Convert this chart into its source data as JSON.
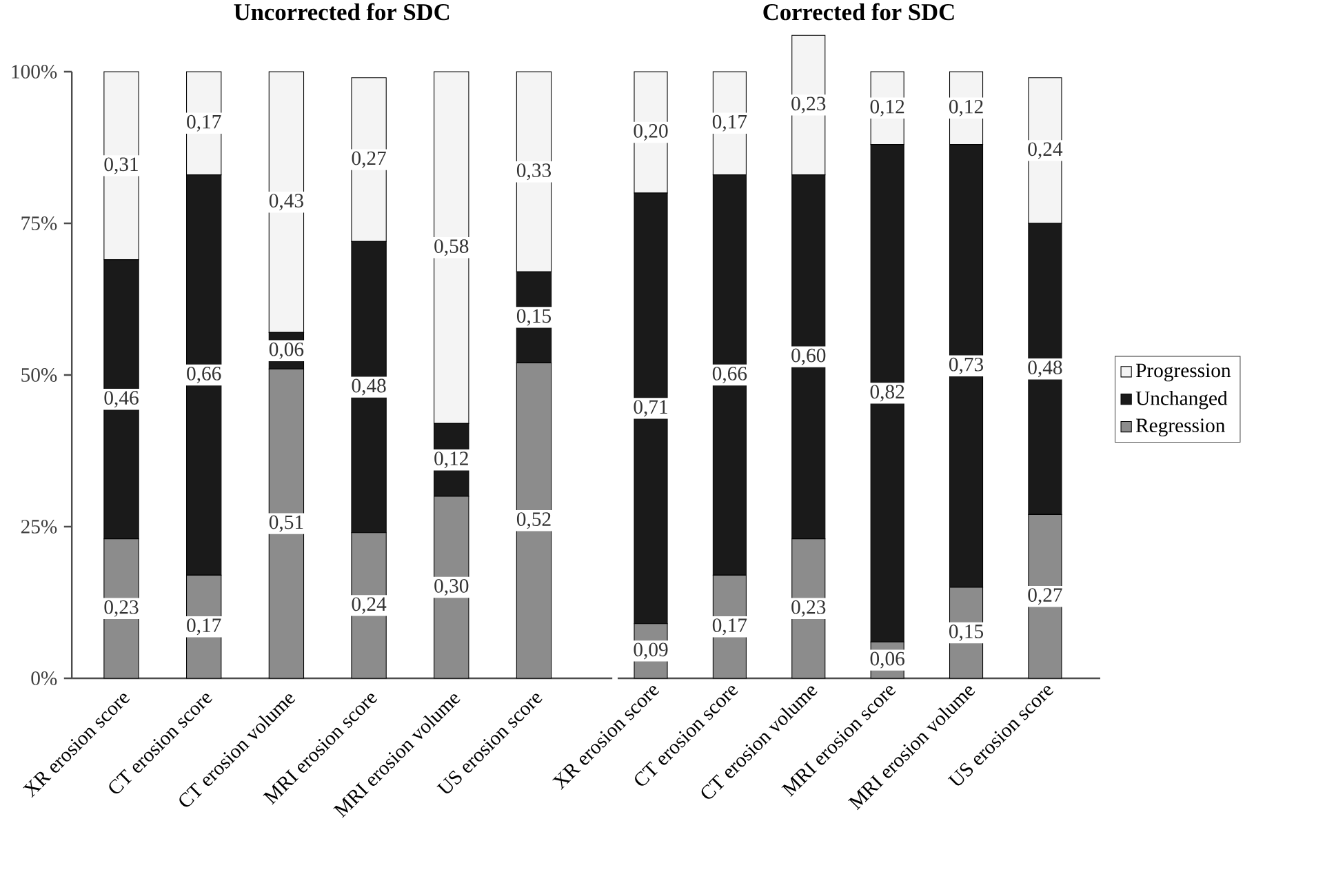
{
  "chart_data": [
    {
      "type": "bar",
      "stacked": true,
      "title": "Uncorrected for SDC",
      "legend": false,
      "categories": [
        "XR erosion score",
        "CT erosion score",
        "CT erosion volume",
        "MRI erosion score",
        "MRI erosion volume",
        "US erosion score"
      ],
      "series": [
        {
          "color": "#8c8c8c",
          "values": [
            0.23,
            0.17,
            0.51,
            0.24,
            0.3,
            0.52
          ],
          "value_labels": [
            "0,23",
            "0,17",
            "0,51",
            "0,24",
            "0,30",
            "0,52"
          ]
        },
        {
          "color": "#1a1a1a",
          "values": [
            0.46,
            0.66,
            0.06,
            0.48,
            0.12,
            0.15
          ],
          "value_labels": [
            "0,46",
            "0,66",
            "0,06",
            "0,48",
            "0,12",
            "0,15"
          ]
        },
        {
          "color": "#f4f4f4",
          "values": [
            0.31,
            0.17,
            0.43,
            0.27,
            0.58,
            0.33
          ],
          "value_labels": [
            "0,31",
            "0,17",
            "0,43",
            "0,27",
            "0,58",
            "0,33"
          ]
        }
      ],
      "ylim": [
        0,
        1
      ],
      "yticks": [
        {
          "value": 0,
          "label": "0%"
        },
        {
          "value": 0.25,
          "label": "25%"
        },
        {
          "value": 0.5,
          "label": "50%"
        },
        {
          "value": 0.75,
          "label": "75%"
        },
        {
          "value": 1,
          "label": "100%"
        }
      ]
    },
    {
      "type": "bar",
      "stacked": true,
      "title": "Corrected for SDC",
      "legend": "right",
      "tick_labels": "x",
      "categories": [
        "XR erosion score",
        "CT erosion score",
        "CT erosion volume",
        "MRI erosion score",
        "MRI erosion volume",
        "US erosion score"
      ],
      "series": [
        {
          "name": "Regression",
          "color": "#8c8c8c",
          "values": [
            0.09,
            0.17,
            0.23,
            0.06,
            0.15,
            0.27
          ],
          "value_labels": [
            "0,09",
            "0,17",
            "0,23",
            "0,06",
            "0,15",
            "0,27"
          ]
        },
        {
          "name": "Unchanged",
          "color": "#1a1a1a",
          "values": [
            0.71,
            0.66,
            0.6,
            0.82,
            0.73,
            0.48
          ],
          "value_labels": [
            "0,71",
            "0,66",
            "0,60",
            "0,82",
            "0,73",
            "0,48"
          ]
        },
        {
          "name": "Progression",
          "color": "#f4f4f4",
          "values": [
            0.2,
            0.17,
            0.23,
            0.12,
            0.12,
            0.24
          ],
          "value_labels": [
            "0,20",
            "0,17",
            "0,23",
            "0,12",
            "0,12",
            "0,24"
          ]
        }
      ],
      "ylim": [
        0,
        1.06
      ]
    }
  ]
}
